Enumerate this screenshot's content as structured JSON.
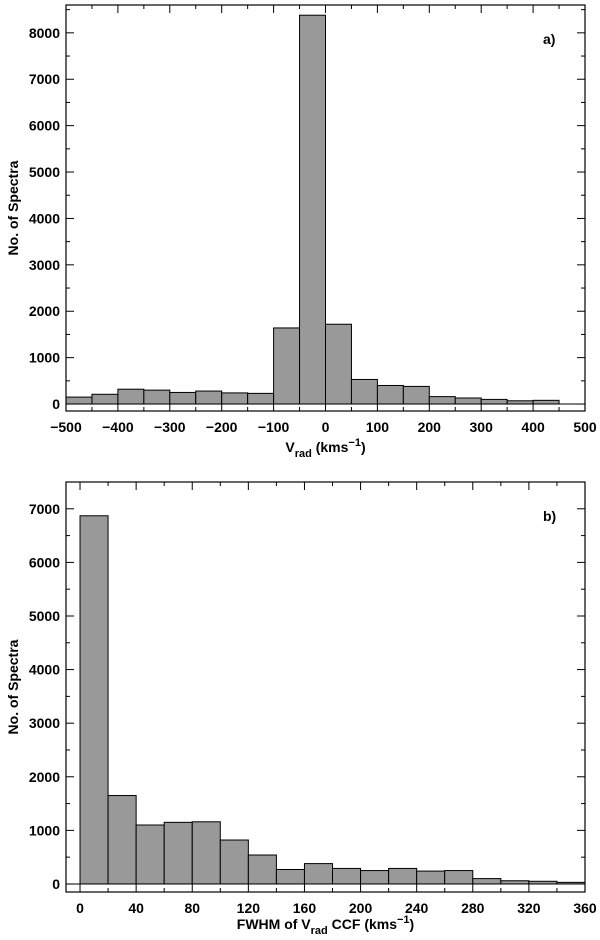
{
  "chart_data": [
    {
      "type": "bar",
      "panel_tag": "a)",
      "title": "",
      "xlabel_main": "V",
      "xlabel_sub": "rad",
      "xlabel_unit": " (kms",
      "xlabel_sup": "−1",
      "xlabel_close": ")",
      "ylabel": "No. of Spectra",
      "xlim": [
        -500,
        500
      ],
      "ylim": [
        -150,
        8600
      ],
      "xticks": [
        -500,
        -400,
        -300,
        -200,
        -100,
        0,
        100,
        200,
        300,
        400,
        500
      ],
      "xtick_labels": [
        "−500",
        "−400",
        "−300",
        "−200",
        "−100",
        "0",
        "100",
        "200",
        "300",
        "400",
        "500"
      ],
      "yticks": [
        0,
        1000,
        2000,
        3000,
        4000,
        5000,
        6000,
        7000,
        8000
      ],
      "ytick_labels": [
        "0",
        "1000",
        "2000",
        "3000",
        "4000",
        "5000",
        "6000",
        "7000",
        "8000"
      ],
      "bin_edges": [
        -500,
        -450,
        -400,
        -350,
        -300,
        -250,
        -200,
        -150,
        -100,
        -50,
        0,
        50,
        100,
        150,
        200,
        250,
        300,
        350,
        400,
        450
      ],
      "values": [
        150,
        210,
        320,
        300,
        250,
        280,
        240,
        230,
        1640,
        8380,
        1720,
        530,
        400,
        380,
        160,
        130,
        100,
        70,
        80
      ],
      "bar_color": "#999999",
      "grid": false
    },
    {
      "type": "bar",
      "panel_tag": "b)",
      "title": "",
      "xlabel_main": "FWHM of V",
      "xlabel_sub": "rad",
      "xlabel_unit": " CCF (kms",
      "xlabel_sup": "−1",
      "xlabel_close": ")",
      "ylabel": "No. of Spectra",
      "xlim": [
        -10,
        360
      ],
      "ylim": [
        -150,
        7500
      ],
      "xticks": [
        0,
        40,
        80,
        120,
        160,
        200,
        240,
        280,
        320,
        360
      ],
      "xtick_labels": [
        "0",
        "40",
        "80",
        "120",
        "160",
        "200",
        "240",
        "280",
        "320",
        "360"
      ],
      "yticks": [
        0,
        1000,
        2000,
        3000,
        4000,
        5000,
        6000,
        7000
      ],
      "ytick_labels": [
        "0",
        "1000",
        "2000",
        "3000",
        "4000",
        "5000",
        "6000",
        "7000"
      ],
      "bin_edges": [
        0,
        20,
        40,
        60,
        80,
        100,
        120,
        140,
        160,
        180,
        200,
        220,
        240,
        260,
        280,
        300,
        320,
        340,
        360
      ],
      "values": [
        6870,
        1650,
        1100,
        1150,
        1160,
        820,
        540,
        270,
        380,
        290,
        250,
        290,
        240,
        250,
        100,
        60,
        50,
        30
      ],
      "bar_color": "#999999",
      "grid": false
    }
  ]
}
